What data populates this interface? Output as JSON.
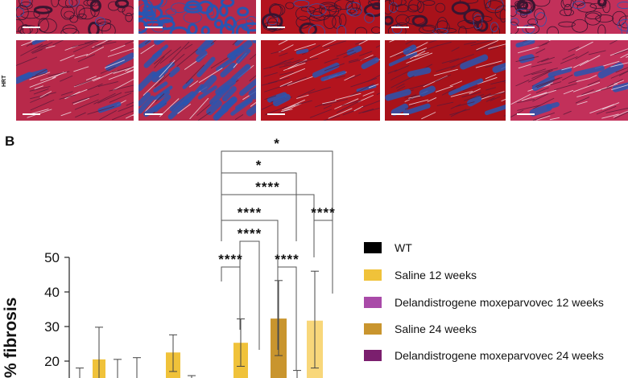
{
  "panel_a": {
    "row_label_heart": "HRT",
    "tiles_row1": [
      "ht-wt",
      "ht-saline-12",
      "ht-delan-12",
      "ht-saline-24",
      "ht-delan-24"
    ],
    "tiles_row2": [
      "hrt-wt",
      "hrt-saline-12",
      "hrt-delan-12",
      "hrt-saline-24",
      "hrt-delan-24"
    ]
  },
  "panel_b_label": "B",
  "colors": {
    "wt": "#000000",
    "saline12": "#f0c23a",
    "delan12": "#a94aa8",
    "saline24": "#c9952e",
    "delan24": "#7b1f6e",
    "stain_muscle": "#b01e2e",
    "stain_fibrosis": "#2a55b0"
  },
  "chart_data": {
    "type": "bar",
    "ylabel": "% fibrosis",
    "yticks": [
      20,
      30,
      40,
      50
    ],
    "ylim": [
      0,
      50
    ],
    "bars": [
      {
        "group": "Delandistrogene moxeparvovec 24 weeks",
        "value": 0,
        "err_high": 18
      },
      {
        "group": "Saline 12 weeks",
        "value": 20.5,
        "err_high": 29.8
      },
      {
        "group": "WT",
        "value": 0,
        "err_high": 20.5
      },
      {
        "group": "WT",
        "value": 0,
        "err_high": 21
      },
      {
        "group": "Saline 12 weeks",
        "value": 22.5,
        "err_high": 27.6,
        "err_low": 17
      },
      {
        "group": "WT",
        "value": 0,
        "err_high": 15.8
      },
      {
        "group": "Saline 12 weeks",
        "value": 25.3,
        "err_high": 32.2,
        "err_low": 18.5
      },
      {
        "group": "Saline 24 weeks",
        "value": 32.3,
        "err_high": 43.3,
        "err_low": 21.6
      },
      {
        "group": "WT",
        "value": 0,
        "err_high": 17.3
      },
      {
        "group": "Saline 12 weeks light",
        "value": 31.7,
        "err_high": 46,
        "err_low": 18
      }
    ],
    "significance": [
      {
        "label": "*"
      },
      {
        "label": "*"
      },
      {
        "label": "****"
      },
      {
        "label": "****"
      },
      {
        "label": "****"
      },
      {
        "label": "****"
      },
      {
        "label": "****"
      },
      {
        "label": "****"
      }
    ]
  },
  "legend": [
    {
      "label": "WT",
      "color_key": "wt"
    },
    {
      "label": "Saline 12 weeks",
      "color_key": "saline12"
    },
    {
      "label": "Delandistrogene moxeparvovec 12 weeks",
      "color_key": "delan12"
    },
    {
      "label": "Saline 24 weeks",
      "color_key": "saline24"
    },
    {
      "label": "Delandistrogene moxeparvovec 24 weeks",
      "color_key": "delan24"
    }
  ]
}
